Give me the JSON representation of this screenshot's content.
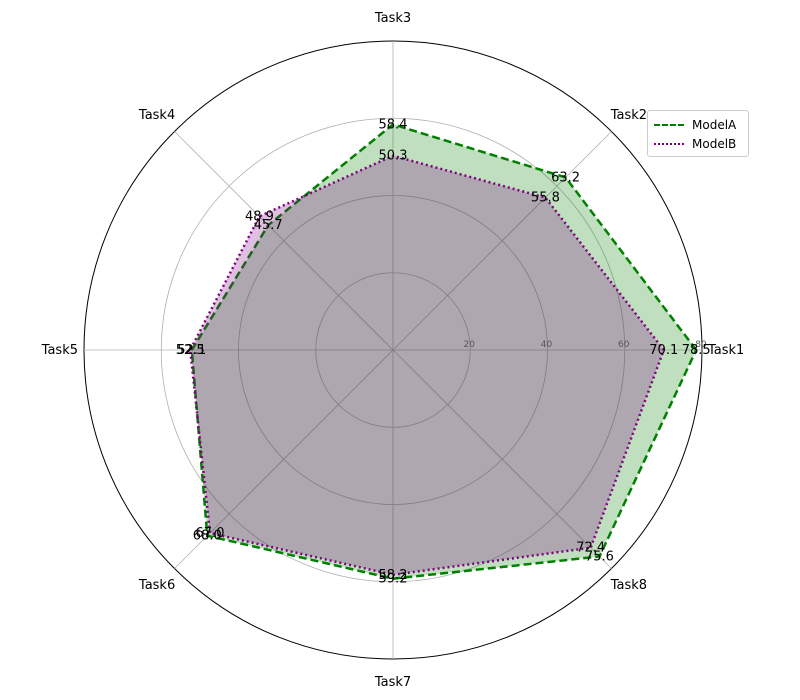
{
  "chart_data": {
    "type": "radar",
    "categories": [
      "Task1",
      "Task2",
      "Task3",
      "Task4",
      "Task5",
      "Task6",
      "Task7",
      "Task8"
    ],
    "series": [
      {
        "name": "ModelA",
        "values": [
          78.5,
          63.2,
          58.4,
          45.7,
          52.1,
          68.0,
          59.2,
          75.6
        ],
        "color": "#008000",
        "fill": "#008000",
        "line_style": "dashed"
      },
      {
        "name": "ModelB",
        "values": [
          70.1,
          55.8,
          50.3,
          48.9,
          52.5,
          67.0,
          58.2,
          72.4
        ],
        "color": "#800080",
        "fill": "#800080",
        "line_style": "dotted"
      }
    ],
    "radial_ticks": [
      20,
      40,
      60,
      80
    ],
    "rlim": [
      0,
      80
    ],
    "grid": true,
    "legend_position": "top-right"
  },
  "legend": {
    "items": [
      "ModelA",
      "ModelB"
    ]
  }
}
